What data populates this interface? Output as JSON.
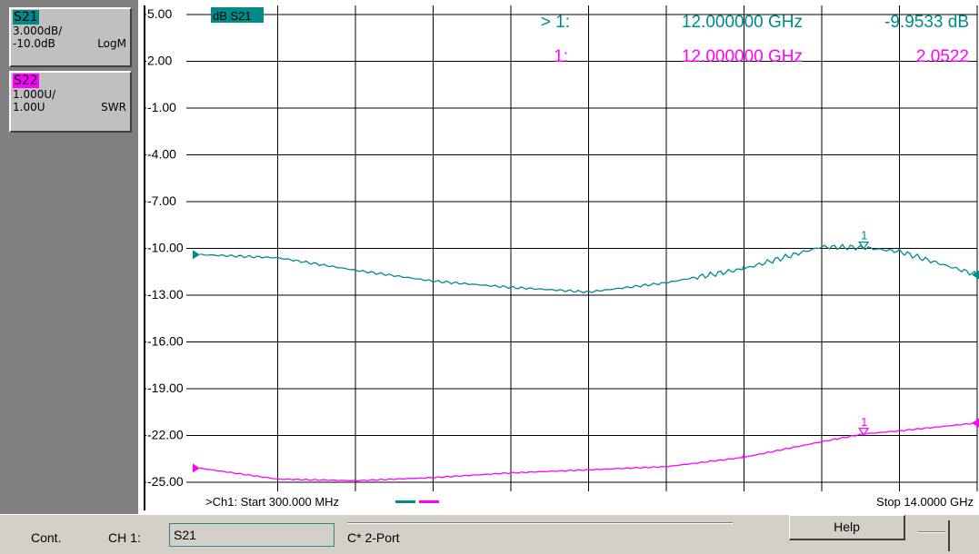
{
  "traces": [
    {
      "name": "S21",
      "scale": "3.000dB/",
      "ref": "-10.0dB",
      "format": "LogM",
      "color": "#008b8b"
    },
    {
      "name": "S22",
      "scale": "1.000U/",
      "ref": "1.00U",
      "format": "SWR",
      "color": "#ff00ff"
    }
  ],
  "chart": {
    "trace_label": "dB S21",
    "y_ticks": [
      "5.00",
      "2.00",
      "-1.00",
      "-4.00",
      "-7.00",
      "-10.00",
      "-13.00",
      "-16.00",
      "-19.00",
      "-22.00",
      "-25.00"
    ],
    "start_text": ">Ch1: Start  300.000 MHz",
    "stop_text": "Stop  14.0000 GHz",
    "markers": [
      {
        "prefix": "> 1:",
        "freq": "12.000000 GHz",
        "value": "-9.9533 dB",
        "color": "#008b8b"
      },
      {
        "prefix": "1:",
        "freq": "12.000000 GHz",
        "value": "2.0522",
        "color": "#ff00ff"
      }
    ],
    "marker_label": "1"
  },
  "chart_data": {
    "type": "line",
    "xlabel": "",
    "ylabel": "",
    "x_range_ghz": [
      0.3,
      14.0
    ],
    "ylim": [
      -25,
      5
    ],
    "grid": true,
    "series": [
      {
        "name": "S21",
        "color": "#008b8b",
        "x": [
          0.3,
          1.67,
          3.04,
          4.41,
          5.78,
          7.15,
          8.52,
          9.89,
          11.26,
          12.0,
          12.63,
          14.0
        ],
        "y": [
          -10.4,
          -10.6,
          -11.4,
          -12.1,
          -12.5,
          -12.8,
          -12.2,
          -11.3,
          -9.9,
          -9.95,
          -10.2,
          -11.7
        ]
      },
      {
        "name": "S22",
        "color": "#ff00ff",
        "x": [
          0.3,
          1.67,
          3.04,
          4.41,
          5.78,
          7.15,
          8.52,
          9.89,
          11.26,
          12.0,
          12.63,
          14.0
        ],
        "y": [
          -24.1,
          -24.8,
          -24.9,
          -24.7,
          -24.4,
          -24.2,
          -24.0,
          -23.4,
          -22.4,
          -21.9,
          -21.7,
          -21.2
        ]
      }
    ]
  },
  "status": {
    "mode": "Cont.",
    "channel": "CH 1:",
    "param": "S21",
    "cal": "C* 2-Port",
    "help": "Help"
  }
}
